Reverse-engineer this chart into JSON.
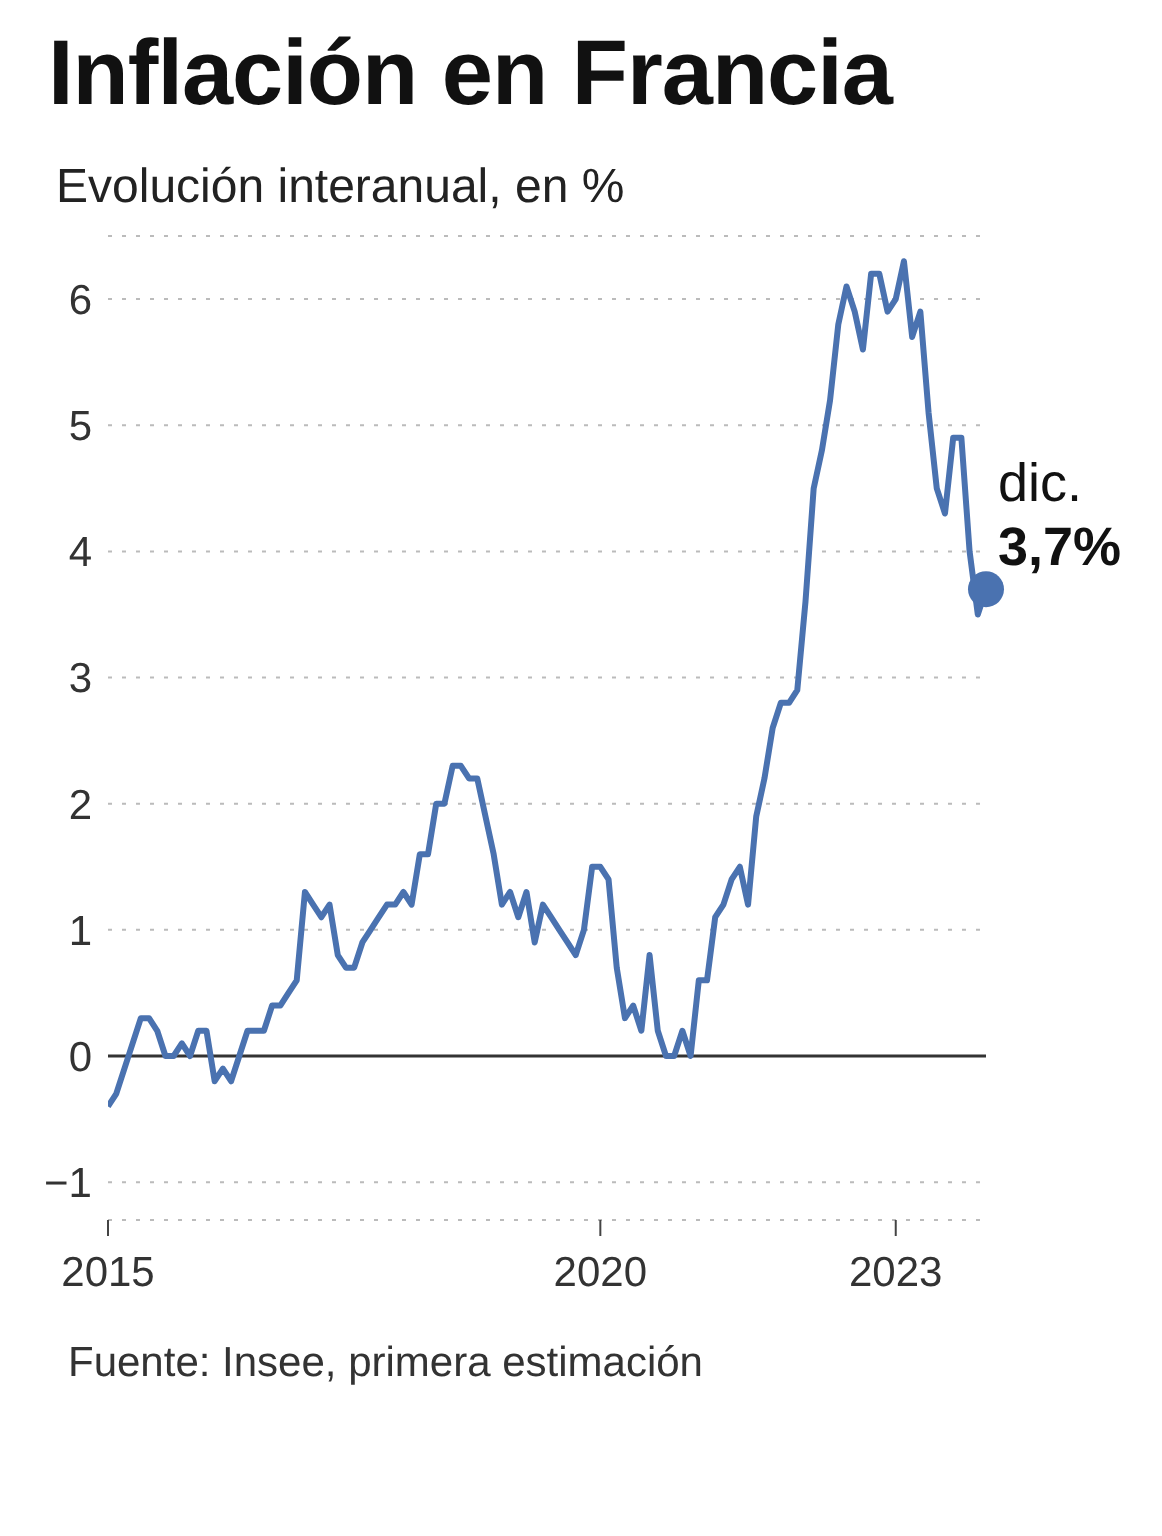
{
  "chart_data": {
    "type": "line",
    "title": "Inflación en Francia",
    "subtitle": "Evolución interanual, en %",
    "x": [
      "2015-01",
      "2015-02",
      "2015-03",
      "2015-04",
      "2015-05",
      "2015-06",
      "2015-07",
      "2015-08",
      "2015-09",
      "2015-10",
      "2015-11",
      "2015-12",
      "2016-01",
      "2016-02",
      "2016-03",
      "2016-04",
      "2016-05",
      "2016-06",
      "2016-07",
      "2016-08",
      "2016-09",
      "2016-10",
      "2016-11",
      "2016-12",
      "2017-01",
      "2017-02",
      "2017-03",
      "2017-04",
      "2017-05",
      "2017-06",
      "2017-07",
      "2017-08",
      "2017-09",
      "2017-10",
      "2017-11",
      "2017-12",
      "2018-01",
      "2018-02",
      "2018-03",
      "2018-04",
      "2018-05",
      "2018-06",
      "2018-07",
      "2018-08",
      "2018-09",
      "2018-10",
      "2018-11",
      "2018-12",
      "2019-01",
      "2019-02",
      "2019-03",
      "2019-04",
      "2019-05",
      "2019-06",
      "2019-07",
      "2019-08",
      "2019-09",
      "2019-10",
      "2019-11",
      "2019-12",
      "2020-01",
      "2020-02",
      "2020-03",
      "2020-04",
      "2020-05",
      "2020-06",
      "2020-07",
      "2020-08",
      "2020-09",
      "2020-10",
      "2020-11",
      "2020-12",
      "2021-01",
      "2021-02",
      "2021-03",
      "2021-04",
      "2021-05",
      "2021-06",
      "2021-07",
      "2021-08",
      "2021-09",
      "2021-10",
      "2021-11",
      "2021-12",
      "2022-01",
      "2022-02",
      "2022-03",
      "2022-04",
      "2022-05",
      "2022-06",
      "2022-07",
      "2022-08",
      "2022-09",
      "2022-10",
      "2022-11",
      "2022-12",
      "2023-01",
      "2023-02",
      "2023-03",
      "2023-04",
      "2023-05",
      "2023-06",
      "2023-07",
      "2023-08",
      "2023-09",
      "2023-10",
      "2023-11",
      "2023-12"
    ],
    "series": [
      {
        "color": "#4a72b0",
        "values": [
          -0.4,
          -0.3,
          -0.1,
          0.1,
          0.3,
          0.3,
          0.2,
          0.0,
          0.0,
          0.1,
          0.0,
          0.2,
          0.2,
          -0.2,
          -0.1,
          -0.2,
          0.0,
          0.2,
          0.2,
          0.2,
          0.4,
          0.4,
          0.5,
          0.6,
          1.3,
          1.2,
          1.1,
          1.2,
          0.8,
          0.7,
          0.7,
          0.9,
          1.0,
          1.1,
          1.2,
          1.2,
          1.3,
          1.2,
          1.6,
          1.6,
          2.0,
          2.0,
          2.3,
          2.3,
          2.2,
          2.2,
          1.9,
          1.6,
          1.2,
          1.3,
          1.1,
          1.3,
          0.9,
          1.2,
          1.1,
          1.0,
          0.9,
          0.8,
          1.0,
          1.5,
          1.5,
          1.4,
          0.7,
          0.3,
          0.4,
          0.2,
          0.8,
          0.2,
          0.0,
          0.0,
          0.2,
          0.0,
          0.6,
          0.6,
          1.1,
          1.2,
          1.4,
          1.5,
          1.2,
          1.9,
          2.2,
          2.6,
          2.8,
          2.8,
          2.9,
          3.6,
          4.5,
          4.8,
          5.2,
          5.8,
          6.1,
          5.9,
          5.6,
          6.2,
          6.2,
          5.9,
          6.0,
          6.3,
          5.7,
          5.9,
          5.1,
          4.5,
          4.3,
          4.9,
          4.9,
          4.0,
          3.5,
          3.7
        ]
      }
    ],
    "xlim": [
      "2015-01",
      "2023-12"
    ],
    "xticks": [
      {
        "value": "2015-01",
        "label": "2015"
      },
      {
        "value": "2020-01",
        "label": "2020"
      },
      {
        "value": "2023-01",
        "label": "2023"
      }
    ],
    "ylim": [
      -1.3,
      6.5
    ],
    "yticks": [
      -1,
      0,
      1,
      2,
      3,
      4,
      5,
      6
    ],
    "grid": "y",
    "ref_lines": [
      {
        "axis": "y",
        "value": 0,
        "color": "#333333"
      }
    ],
    "annotations": [
      {
        "text": "dic.",
        "x": "2023-12",
        "y": 3.7
      },
      {
        "text": "3,7%",
        "x": "2023-12",
        "y": 3.7
      },
      "Fuente: Insee, primera estimación"
    ]
  }
}
